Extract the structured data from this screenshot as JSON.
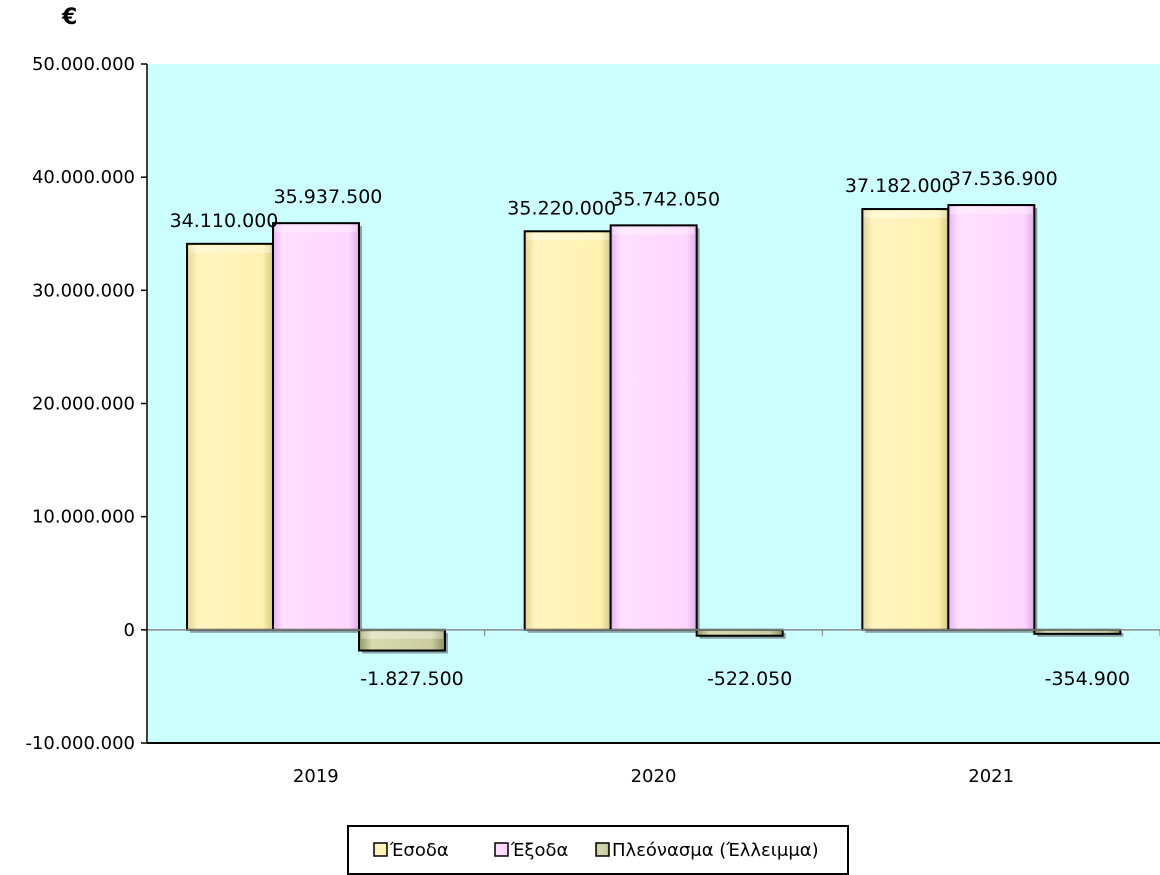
{
  "chart_data": {
    "type": "bar",
    "unit_label": "€",
    "categories": [
      "2019",
      "2020",
      "2021"
    ],
    "series": [
      {
        "name": "Έσοδα",
        "values": [
          34110000,
          35220000,
          37182000
        ],
        "labels": [
          "34.110.000",
          "35.220.000",
          "37.182.000"
        ],
        "color": "#fff2b0"
      },
      {
        "name": "Έξοδα",
        "values": [
          35937500,
          35742050,
          37536900
        ],
        "labels": [
          "35.937.500",
          "35.742.050",
          "37.536.900"
        ],
        "color": "#ffd6ff"
      },
      {
        "name": "Πλεόνασμα (Έλλειμμα)",
        "values": [
          -1827500,
          -522050,
          -354900
        ],
        "labels": [
          "-1.827.500",
          "-522.050",
          "-354.900"
        ],
        "color": "#c9cca0"
      }
    ],
    "ylim": [
      -10000000,
      50000000
    ],
    "yticks": [
      {
        "value": 50000000,
        "label": "50.000.000"
      },
      {
        "value": 40000000,
        "label": "40.000.000"
      },
      {
        "value": 30000000,
        "label": "30.000.000"
      },
      {
        "value": 20000000,
        "label": "20.000.000"
      },
      {
        "value": 10000000,
        "label": "10.000.000"
      },
      {
        "value": 0,
        "label": "0"
      },
      {
        "value": -10000000,
        "label": "-10.000.000"
      }
    ],
    "plot_background": "#ccffff",
    "grid": false,
    "legend_position": "bottom"
  }
}
